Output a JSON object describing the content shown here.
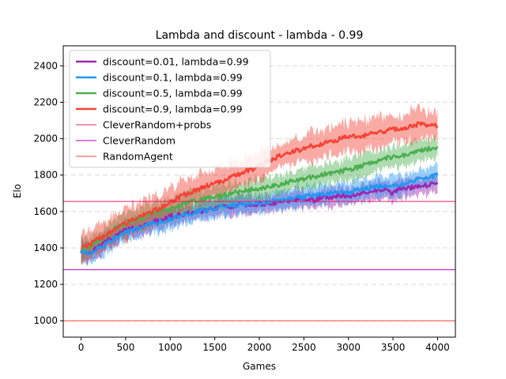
{
  "chart_data": {
    "type": "line",
    "title": "Lambda and discount - lambda - 0.99",
    "xlabel": "Games",
    "ylabel": "Elo",
    "xlim": [
      -200,
      4200
    ],
    "ylim": [
      910,
      2510
    ],
    "xticks": [
      0,
      500,
      1000,
      1500,
      2000,
      2500,
      3000,
      3500,
      4000
    ],
    "yticks": [
      1000,
      1200,
      1400,
      1600,
      1800,
      2000,
      2200,
      2400
    ],
    "grid": "horizontal dashed",
    "legend_position": "top-left",
    "series": [
      {
        "name": "discount=0.01, lambda=0.99",
        "color": "#9c27b0",
        "x": [
          0,
          100,
          200,
          300,
          400,
          500,
          600,
          700,
          800,
          900,
          1000,
          1100,
          1200,
          1300,
          1400,
          1500,
          1600,
          1700,
          1800,
          1900,
          2000,
          2100,
          2200,
          2300,
          2400,
          2500,
          2600,
          2700,
          2800,
          2900,
          3000,
          3100,
          3200,
          3300,
          3400,
          3500,
          3600,
          3700,
          3800,
          3900,
          4000
        ],
        "values": [
          1385,
          1370,
          1405,
          1440,
          1470,
          1495,
          1510,
          1525,
          1545,
          1560,
          1575,
          1580,
          1590,
          1600,
          1605,
          1620,
          1625,
          1630,
          1640,
          1630,
          1645,
          1640,
          1650,
          1660,
          1665,
          1670,
          1660,
          1680,
          1680,
          1690,
          1685,
          1700,
          1705,
          1710,
          1715,
          1700,
          1730,
          1730,
          1740,
          1745,
          1760
        ],
        "spread": 45
      },
      {
        "name": "discount=0.1, lambda=0.99",
        "color": "#2196f3",
        "x": [
          0,
          100,
          200,
          300,
          400,
          500,
          600,
          700,
          800,
          900,
          1000,
          1100,
          1200,
          1300,
          1400,
          1500,
          1600,
          1700,
          1800,
          1900,
          2000,
          2100,
          2200,
          2300,
          2400,
          2500,
          2600,
          2700,
          2800,
          2900,
          3000,
          3100,
          3200,
          3300,
          3400,
          3500,
          3600,
          3700,
          3800,
          3900,
          4000
        ],
        "values": [
          1380,
          1375,
          1395,
          1430,
          1460,
          1485,
          1500,
          1520,
          1535,
          1545,
          1560,
          1570,
          1580,
          1600,
          1610,
          1620,
          1625,
          1635,
          1640,
          1640,
          1650,
          1655,
          1660,
          1670,
          1675,
          1680,
          1690,
          1690,
          1700,
          1710,
          1700,
          1720,
          1730,
          1735,
          1740,
          1740,
          1750,
          1760,
          1775,
          1780,
          1800
        ],
        "spread": 50
      },
      {
        "name": "discount=0.5, lambda=0.99",
        "color": "#4caf50",
        "x": [
          0,
          100,
          200,
          300,
          400,
          500,
          600,
          700,
          800,
          900,
          1000,
          1100,
          1200,
          1300,
          1400,
          1500,
          1600,
          1700,
          1800,
          1900,
          2000,
          2100,
          2200,
          2300,
          2400,
          2500,
          2600,
          2700,
          2800,
          2900,
          3000,
          3100,
          3200,
          3300,
          3400,
          3500,
          3600,
          3700,
          3800,
          3900,
          4000
        ],
        "values": [
          1395,
          1410,
          1440,
          1480,
          1510,
          1530,
          1555,
          1570,
          1590,
          1600,
          1615,
          1630,
          1650,
          1660,
          1670,
          1680,
          1690,
          1700,
          1710,
          1720,
          1725,
          1740,
          1745,
          1760,
          1770,
          1780,
          1790,
          1800,
          1810,
          1820,
          1830,
          1840,
          1860,
          1870,
          1890,
          1900,
          1910,
          1920,
          1935,
          1945,
          1955
        ],
        "spread": 55
      },
      {
        "name": "discount=0.9, lambda=0.99",
        "color": "#f44336",
        "x": [
          0,
          100,
          200,
          300,
          400,
          500,
          600,
          700,
          800,
          900,
          1000,
          1100,
          1200,
          1300,
          1400,
          1500,
          1600,
          1700,
          1800,
          1900,
          2000,
          2100,
          2200,
          2300,
          2400,
          2500,
          2600,
          2700,
          2800,
          2900,
          3000,
          3100,
          3200,
          3300,
          3400,
          3500,
          3600,
          3700,
          3800,
          3900,
          4000
        ],
        "values": [
          1400,
          1420,
          1450,
          1480,
          1510,
          1530,
          1560,
          1580,
          1600,
          1620,
          1650,
          1680,
          1700,
          1720,
          1740,
          1760,
          1770,
          1790,
          1810,
          1830,
          1850,
          1880,
          1900,
          1910,
          1930,
          1950,
          1960,
          1970,
          1980,
          2000,
          2010,
          2010,
          2020,
          2030,
          2040,
          2050,
          2060,
          2070,
          2080,
          2075,
          2070
        ],
        "spread": 75
      }
    ],
    "reference_lines": [
      {
        "name": "CleverRandom+probs",
        "color": "#e91e63",
        "value": 1655
      },
      {
        "name": "CleverRandom",
        "color": "#c000c0",
        "value": 1280
      },
      {
        "name": "RandomAgent",
        "color": "#f44336",
        "value": 1000
      }
    ]
  }
}
